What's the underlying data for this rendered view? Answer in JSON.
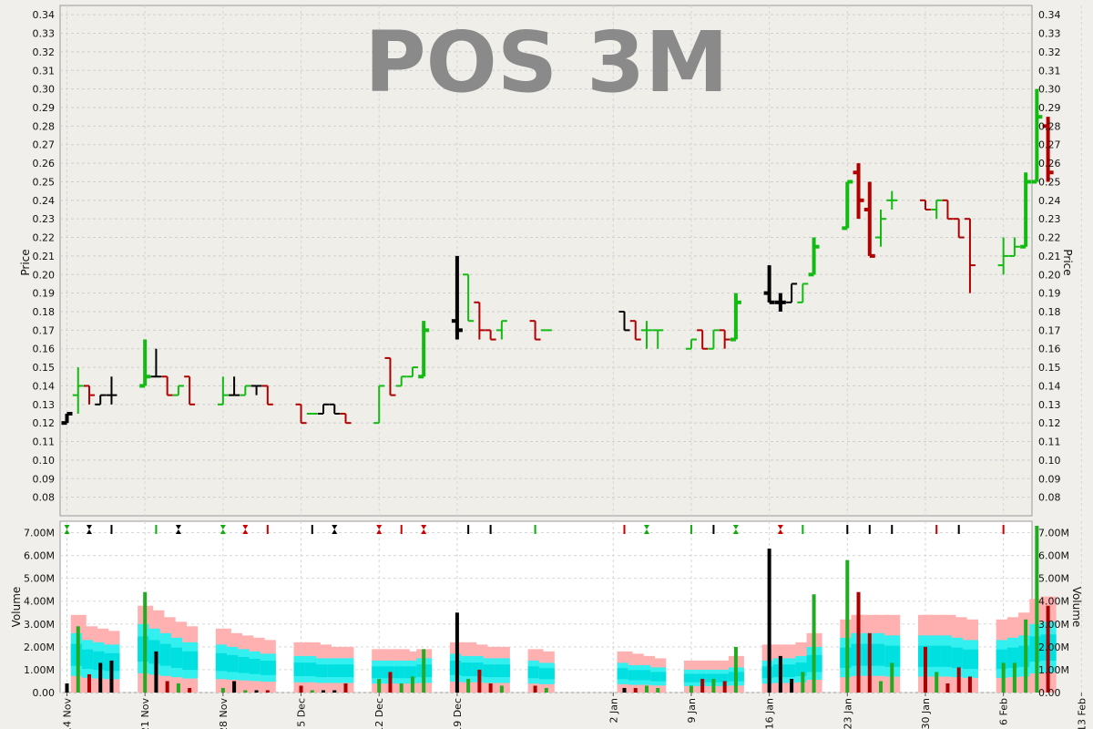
{
  "chart_data": [
    {
      "type": "ohlc",
      "title": "POS 3M",
      "ylabel": "Price",
      "ylim": [
        0.07,
        0.345
      ],
      "y_ticks": [
        "0.08",
        "0.09",
        "0.10",
        "0.11",
        "0.12",
        "0.13",
        "0.14",
        "0.15",
        "0.16",
        "0.17",
        "0.18",
        "0.19",
        "0.20",
        "0.21",
        "0.22",
        "0.23",
        "0.24",
        "0.25",
        "0.26",
        "0.27",
        "0.28",
        "0.29",
        "0.30",
        "0.31",
        "0.32",
        "0.33",
        "0.34"
      ],
      "grid": true,
      "colors": {
        "up": "#11bb11",
        "down": "#b00000",
        "flat": "#000000"
      },
      "bars": [
        {
          "date": "2016-11-14",
          "o": 0.12,
          "h": 0.125,
          "l": 0.12,
          "c": 0.125,
          "dir": "flat",
          "bold": true
        },
        {
          "date": "2016-11-15",
          "o": 0.135,
          "h": 0.15,
          "l": 0.125,
          "c": 0.14,
          "dir": "up",
          "bold": false
        },
        {
          "date": "2016-11-16",
          "o": 0.14,
          "h": 0.14,
          "l": 0.13,
          "c": 0.135,
          "dir": "down",
          "bold": false
        },
        {
          "date": "2016-11-17",
          "o": 0.13,
          "h": 0.135,
          "l": 0.13,
          "c": 0.135,
          "dir": "flat",
          "bold": false
        },
        {
          "date": "2016-11-18",
          "o": 0.135,
          "h": 0.145,
          "l": 0.13,
          "c": 0.135,
          "dir": "flat",
          "bold": false
        },
        {
          "date": "2016-11-21",
          "o": 0.14,
          "h": 0.165,
          "l": 0.14,
          "c": 0.145,
          "dir": "up",
          "bold": true
        },
        {
          "date": "2016-11-22",
          "o": 0.145,
          "h": 0.16,
          "l": 0.145,
          "c": 0.145,
          "dir": "flat",
          "bold": false
        },
        {
          "date": "2016-11-23",
          "o": 0.145,
          "h": 0.145,
          "l": 0.135,
          "c": 0.135,
          "dir": "down",
          "bold": false
        },
        {
          "date": "2016-11-24",
          "o": 0.135,
          "h": 0.14,
          "l": 0.135,
          "c": 0.14,
          "dir": "up",
          "bold": false
        },
        {
          "date": "2016-11-25",
          "o": 0.145,
          "h": 0.145,
          "l": 0.13,
          "c": 0.13,
          "dir": "down",
          "bold": false
        },
        {
          "date": "2016-11-28",
          "o": 0.13,
          "h": 0.145,
          "l": 0.13,
          "c": 0.135,
          "dir": "up",
          "bold": false
        },
        {
          "date": "2016-11-29",
          "o": 0.135,
          "h": 0.145,
          "l": 0.135,
          "c": 0.135,
          "dir": "flat",
          "bold": false
        },
        {
          "date": "2016-11-30",
          "o": 0.135,
          "h": 0.14,
          "l": 0.135,
          "c": 0.14,
          "dir": "up",
          "bold": false
        },
        {
          "date": "2016-12-01",
          "o": 0.14,
          "h": 0.14,
          "l": 0.135,
          "c": 0.14,
          "dir": "flat",
          "bold": false
        },
        {
          "date": "2016-12-02",
          "o": 0.14,
          "h": 0.14,
          "l": 0.13,
          "c": 0.13,
          "dir": "down",
          "bold": false
        },
        {
          "date": "2016-12-05",
          "o": 0.13,
          "h": 0.13,
          "l": 0.12,
          "c": 0.12,
          "dir": "down",
          "bold": false
        },
        {
          "date": "2016-12-06",
          "o": 0.125,
          "h": 0.125,
          "l": 0.125,
          "c": 0.125,
          "dir": "up",
          "bold": false
        },
        {
          "date": "2016-12-07",
          "o": 0.125,
          "h": 0.13,
          "l": 0.125,
          "c": 0.13,
          "dir": "flat",
          "bold": false
        },
        {
          "date": "2016-12-08",
          "o": 0.13,
          "h": 0.13,
          "l": 0.125,
          "c": 0.125,
          "dir": "flat",
          "bold": false
        },
        {
          "date": "2016-12-09",
          "o": 0.125,
          "h": 0.125,
          "l": 0.12,
          "c": 0.12,
          "dir": "down",
          "bold": false
        },
        {
          "date": "2016-12-12",
          "o": 0.12,
          "h": 0.14,
          "l": 0.12,
          "c": 0.14,
          "dir": "up",
          "bold": false
        },
        {
          "date": "2016-12-13",
          "o": 0.155,
          "h": 0.155,
          "l": 0.135,
          "c": 0.135,
          "dir": "down",
          "bold": false
        },
        {
          "date": "2016-12-14",
          "o": 0.14,
          "h": 0.145,
          "l": 0.14,
          "c": 0.145,
          "dir": "up",
          "bold": false
        },
        {
          "date": "2016-12-15",
          "o": 0.145,
          "h": 0.15,
          "l": 0.145,
          "c": 0.15,
          "dir": "up",
          "bold": false
        },
        {
          "date": "2016-12-16",
          "o": 0.145,
          "h": 0.175,
          "l": 0.145,
          "c": 0.17,
          "dir": "up",
          "bold": true
        },
        {
          "date": "2016-12-19",
          "o": 0.175,
          "h": 0.21,
          "l": 0.165,
          "c": 0.17,
          "dir": "flat",
          "bold": true
        },
        {
          "date": "2016-12-20",
          "o": 0.2,
          "h": 0.2,
          "l": 0.175,
          "c": 0.175,
          "dir": "up",
          "bold": false
        },
        {
          "date": "2016-12-21",
          "o": 0.185,
          "h": 0.185,
          "l": 0.165,
          "c": 0.17,
          "dir": "down",
          "bold": false
        },
        {
          "date": "2016-12-22",
          "o": 0.17,
          "h": 0.17,
          "l": 0.165,
          "c": 0.165,
          "dir": "down",
          "bold": false
        },
        {
          "date": "2016-12-23",
          "o": 0.17,
          "h": 0.175,
          "l": 0.165,
          "c": 0.175,
          "dir": "up",
          "bold": false
        },
        {
          "date": "2016-12-26",
          "o": 0.175,
          "h": 0.175,
          "l": 0.165,
          "c": 0.165,
          "dir": "down",
          "bold": false
        },
        {
          "date": "2016-12-27",
          "o": 0.17,
          "h": 0.17,
          "l": 0.17,
          "c": 0.17,
          "dir": "up",
          "bold": false
        },
        {
          "date": "2017-01-03",
          "o": 0.18,
          "h": 0.18,
          "l": 0.17,
          "c": 0.17,
          "dir": "flat",
          "bold": false
        },
        {
          "date": "2017-01-04",
          "o": 0.175,
          "h": 0.175,
          "l": 0.165,
          "c": 0.165,
          "dir": "down",
          "bold": false
        },
        {
          "date": "2017-01-05",
          "o": 0.17,
          "h": 0.175,
          "l": 0.16,
          "c": 0.17,
          "dir": "up",
          "bold": false
        },
        {
          "date": "2017-01-06",
          "o": 0.17,
          "h": 0.17,
          "l": 0.16,
          "c": 0.17,
          "dir": "up",
          "bold": false
        },
        {
          "date": "2017-01-09",
          "o": 0.16,
          "h": 0.165,
          "l": 0.16,
          "c": 0.165,
          "dir": "up",
          "bold": false
        },
        {
          "date": "2017-01-10",
          "o": 0.17,
          "h": 0.17,
          "l": 0.16,
          "c": 0.16,
          "dir": "down",
          "bold": false
        },
        {
          "date": "2017-01-11",
          "o": 0.16,
          "h": 0.17,
          "l": 0.16,
          "c": 0.17,
          "dir": "up",
          "bold": false
        },
        {
          "date": "2017-01-12",
          "o": 0.17,
          "h": 0.17,
          "l": 0.16,
          "c": 0.165,
          "dir": "down",
          "bold": false
        },
        {
          "date": "2017-01-13",
          "o": 0.165,
          "h": 0.19,
          "l": 0.165,
          "c": 0.185,
          "dir": "up",
          "bold": true
        },
        {
          "date": "2017-01-16",
          "o": 0.19,
          "h": 0.205,
          "l": 0.185,
          "c": 0.185,
          "dir": "flat",
          "bold": true
        },
        {
          "date": "2017-01-17",
          "o": 0.185,
          "h": 0.19,
          "l": 0.18,
          "c": 0.185,
          "dir": "flat",
          "bold": true
        },
        {
          "date": "2017-01-18",
          "o": 0.185,
          "h": 0.195,
          "l": 0.185,
          "c": 0.195,
          "dir": "flat",
          "bold": false
        },
        {
          "date": "2017-01-19",
          "o": 0.185,
          "h": 0.195,
          "l": 0.185,
          "c": 0.195,
          "dir": "up",
          "bold": false
        },
        {
          "date": "2017-01-20",
          "o": 0.2,
          "h": 0.22,
          "l": 0.2,
          "c": 0.215,
          "dir": "up",
          "bold": true
        },
        {
          "date": "2017-01-23",
          "o": 0.225,
          "h": 0.25,
          "l": 0.225,
          "c": 0.25,
          "dir": "up",
          "bold": true
        },
        {
          "date": "2017-01-24",
          "o": 0.255,
          "h": 0.26,
          "l": 0.23,
          "c": 0.24,
          "dir": "down",
          "bold": true
        },
        {
          "date": "2017-01-25",
          "o": 0.235,
          "h": 0.25,
          "l": 0.21,
          "c": 0.21,
          "dir": "down",
          "bold": true
        },
        {
          "date": "2017-01-26",
          "o": 0.22,
          "h": 0.235,
          "l": 0.215,
          "c": 0.23,
          "dir": "up",
          "bold": false
        },
        {
          "date": "2017-01-27",
          "o": 0.24,
          "h": 0.245,
          "l": 0.235,
          "c": 0.24,
          "dir": "up",
          "bold": false
        },
        {
          "date": "2017-01-30",
          "o": 0.24,
          "h": 0.24,
          "l": 0.235,
          "c": 0.235,
          "dir": "down",
          "bold": false
        },
        {
          "date": "2017-01-31",
          "o": 0.235,
          "h": 0.24,
          "l": 0.23,
          "c": 0.24,
          "dir": "up",
          "bold": false
        },
        {
          "date": "2017-02-01",
          "o": 0.24,
          "h": 0.24,
          "l": 0.23,
          "c": 0.23,
          "dir": "down",
          "bold": false
        },
        {
          "date": "2017-02-02",
          "o": 0.23,
          "h": 0.23,
          "l": 0.22,
          "c": 0.22,
          "dir": "down",
          "bold": false
        },
        {
          "date": "2017-02-03",
          "o": 0.23,
          "h": 0.23,
          "l": 0.19,
          "c": 0.205,
          "dir": "down",
          "bold": false
        },
        {
          "date": "2017-02-06",
          "o": 0.205,
          "h": 0.22,
          "l": 0.2,
          "c": 0.21,
          "dir": "up",
          "bold": false
        },
        {
          "date": "2017-02-07",
          "o": 0.21,
          "h": 0.22,
          "l": 0.21,
          "c": 0.215,
          "dir": "up",
          "bold": false
        },
        {
          "date": "2017-02-08",
          "o": 0.215,
          "h": 0.255,
          "l": 0.215,
          "c": 0.25,
          "dir": "up",
          "bold": true
        },
        {
          "date": "2017-02-09",
          "o": 0.25,
          "h": 0.3,
          "l": 0.25,
          "c": 0.285,
          "dir": "up",
          "bold": true
        },
        {
          "date": "2017-02-10",
          "o": 0.28,
          "h": 0.285,
          "l": 0.25,
          "c": 0.255,
          "dir": "down",
          "bold": true
        }
      ]
    },
    {
      "type": "bar",
      "ylabel": "Volume",
      "ylim": [
        0,
        7500000
      ],
      "y_ticks": [
        "0.00",
        "1.00M",
        "2.00M",
        "3.00M",
        "4.00M",
        "5.00M",
        "6.00M",
        "7.00M"
      ],
      "x_tick_labels": [
        "14 Nov",
        "21 Nov",
        "28 Nov",
        "5 Dec",
        "12 Dec",
        "19 Dec",
        "2 Jan",
        "9 Jan",
        "16 Jan",
        "23 Jan",
        "30 Jan",
        "6 Feb",
        "13 Feb"
      ],
      "grid": true,
      "series": [
        {
          "values_millions": [
            0.4,
            2.9,
            0.8,
            1.3,
            1.4,
            4.4,
            1.8,
            0.5,
            0.4,
            0.2,
            0.2,
            0.5,
            0.1,
            0.1,
            0.1,
            0.3,
            0.1,
            0.1,
            0.1,
            0.4,
            0.6,
            0.9,
            0.4,
            0.7,
            1.9,
            3.5,
            0.6,
            1.0,
            0.4,
            0.3,
            0.3,
            0.2,
            0.2,
            0.2,
            0.3,
            0.2,
            0.3,
            0.6,
            0.6,
            0.5,
            2.0,
            6.3,
            1.6,
            0.6,
            0.9,
            4.3,
            5.8,
            4.4,
            2.6,
            0.5,
            1.3,
            2.0,
            0.9,
            0.4,
            1.1,
            0.7,
            1.3,
            1.3,
            3.2,
            7.3,
            3.8
          ]
        }
      ],
      "bands": {
        "pink_top_millions": [
          null,
          3.4,
          2.9,
          2.8,
          2.7,
          3.8,
          3.6,
          3.3,
          3.1,
          2.9,
          2.8,
          2.6,
          2.5,
          2.4,
          2.3,
          2.2,
          2.2,
          2.1,
          2.0,
          2.0,
          1.9,
          1.9,
          1.9,
          1.8,
          1.9,
          2.2,
          2.2,
          2.1,
          2.0,
          2.0,
          1.9,
          1.8,
          1.8,
          1.7,
          1.6,
          1.5,
          1.4,
          1.4,
          1.4,
          1.4,
          1.6,
          2.1,
          2.1,
          2.1,
          2.2,
          2.6,
          3.2,
          3.4,
          3.4,
          3.4,
          3.4,
          3.4,
          3.4,
          3.4,
          3.3,
          3.2,
          3.2,
          3.3,
          3.5,
          4.1,
          4.2
        ],
        "cyan_top_millions": [
          null,
          2.6,
          2.3,
          2.2,
          2.1,
          3.0,
          2.8,
          2.6,
          2.4,
          2.2,
          2.1,
          2.0,
          1.9,
          1.8,
          1.7,
          1.6,
          1.6,
          1.5,
          1.5,
          1.5,
          1.4,
          1.4,
          1.4,
          1.4,
          1.5,
          1.7,
          1.6,
          1.6,
          1.5,
          1.5,
          1.4,
          1.3,
          1.3,
          1.2,
          1.2,
          1.1,
          1.0,
          1.0,
          1.0,
          1.0,
          1.1,
          1.4,
          1.5,
          1.5,
          1.6,
          2.0,
          2.4,
          2.6,
          2.6,
          2.6,
          2.5,
          2.5,
          2.5,
          2.5,
          2.4,
          2.3,
          2.3,
          2.4,
          2.5,
          3.0,
          3.1
        ]
      },
      "signals": [
        {
          "color": "#11aa11",
          "double": true
        },
        {
          "color": "#000000",
          "double": true
        },
        {
          "color": "#000000",
          "double": false
        },
        {
          "color": "#11aa11",
          "double": false
        },
        {
          "color": "#000000",
          "double": true
        },
        {
          "color": "#11aa11",
          "double": true
        },
        {
          "color": "#cc0000",
          "double": true
        },
        {
          "color": "#cc0000",
          "double": false
        },
        {
          "color": "#000000",
          "double": false
        },
        {
          "color": "#000000",
          "double": true
        },
        {
          "color": "#cc0000",
          "double": true
        },
        {
          "color": "#cc0000",
          "double": false
        },
        {
          "color": "#cc0000",
          "double": true
        },
        {
          "color": "#000000",
          "double": false
        },
        {
          "color": "#000000",
          "double": false
        },
        {
          "color": "#11aa11",
          "double": false
        },
        {
          "color": "#cc0000",
          "double": false
        },
        {
          "color": "#11aa11",
          "double": true
        },
        {
          "color": "#11aa11",
          "double": false
        },
        {
          "color": "#000000",
          "double": false
        },
        {
          "color": "#11aa11",
          "double": true
        },
        {
          "color": "#cc0000",
          "double": true
        },
        {
          "color": "#11aa11",
          "double": false
        },
        {
          "color": "#000000",
          "double": false
        },
        {
          "color": "#000000",
          "double": false
        },
        {
          "color": "#000000",
          "double": false
        },
        {
          "color": "#cc0000",
          "double": false
        },
        {
          "color": "#000000",
          "double": false
        },
        {
          "color": "#cc0000",
          "double": false
        }
      ]
    }
  ]
}
